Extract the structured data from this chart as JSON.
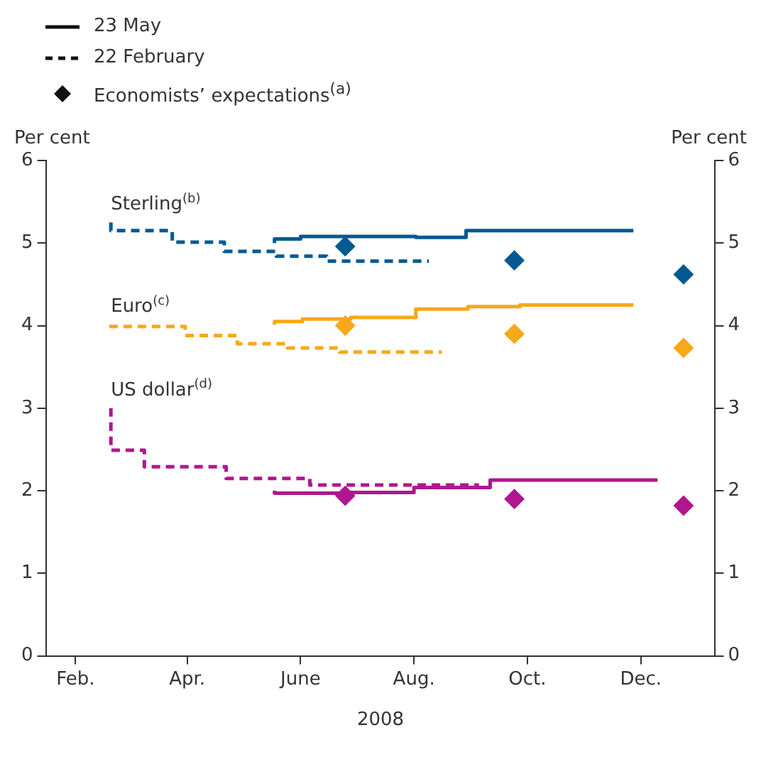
{
  "chart_data": {
    "type": "step",
    "xlabel": "2008",
    "ylabel": "Per cent",
    "y2label": "Per cent",
    "xlim": [
      "2008-01-16",
      "2009-01-10"
    ],
    "xticks": [
      {
        "value": "2008-02-01",
        "label": "Feb."
      },
      {
        "value": "2008-04-01",
        "label": "Apr."
      },
      {
        "value": "2008-06-01",
        "label": "June"
      },
      {
        "value": "2008-08-01",
        "label": "Aug."
      },
      {
        "value": "2008-10-01",
        "label": "Oct."
      },
      {
        "value": "2008-12-01",
        "label": "Dec."
      }
    ],
    "ylim": [
      0,
      6
    ],
    "yticks": [
      0,
      1,
      2,
      3,
      4,
      5,
      6
    ],
    "y2lim": [
      0,
      6
    ],
    "y2ticks": [
      0,
      1,
      2,
      3,
      4,
      5,
      6
    ],
    "grid": false,
    "series": [
      {
        "color": "#005a91",
        "line_style": "solid",
        "x": [
          "2008-05-18",
          "2008-06-01",
          "2008-08-02",
          "2008-08-29",
          "2008-10-03",
          "2008-11-27"
        ],
        "values": [
          5.0,
          5.05,
          5.08,
          5.07,
          5.15,
          5.15
        ]
      },
      {
        "color": "#005a91",
        "line_style": "dashed",
        "x": [
          "2008-02-20",
          "2008-03-24",
          "2008-04-21",
          "2008-05-19",
          "2008-06-15",
          "2008-07-12",
          "2008-08-09"
        ],
        "values": [
          5.25,
          5.15,
          5.01,
          4.9,
          4.84,
          4.78,
          4.78
        ]
      },
      {
        "color": "#f7a81b",
        "line_style": "solid",
        "x": [
          "2008-05-18",
          "2008-06-02",
          "2008-06-28",
          "2008-08-02",
          "2008-08-30",
          "2008-09-27",
          "2008-11-01",
          "2008-11-27"
        ],
        "values": [
          4.01,
          4.05,
          4.08,
          4.1,
          4.2,
          4.23,
          4.25,
          4.25
        ]
      },
      {
        "color": "#f7a81b",
        "line_style": "dashed",
        "x": [
          "2008-02-20",
          "2008-03-31",
          "2008-04-28",
          "2008-05-25",
          "2008-06-22",
          "2008-07-19",
          "2008-08-16"
        ],
        "values": [
          4.01,
          3.99,
          3.88,
          3.78,
          3.73,
          3.68,
          3.68
        ]
      },
      {
        "color": "#b0168f",
        "line_style": "solid",
        "x": [
          "2008-05-18",
          "2008-06-25",
          "2008-08-01",
          "2008-09-11",
          "2008-10-23",
          "2008-12-10"
        ],
        "values": [
          2.0,
          1.97,
          1.98,
          2.04,
          2.13,
          2.13
        ]
      },
      {
        "color": "#b0168f",
        "line_style": "dashed",
        "x": [
          "2008-02-20",
          "2008-03-09",
          "2008-04-22",
          "2008-06-06",
          "2008-07-21",
          "2008-09-05"
        ],
        "values": [
          3.0,
          2.49,
          2.29,
          2.15,
          2.07,
          2.07
        ]
      },
      {
        "type": "scatter",
        "color": "#005a91",
        "marker": "diamond",
        "x": [
          "2008-06-25",
          "2008-09-24",
          "2008-12-24"
        ],
        "values": [
          4.96,
          4.79,
          4.62
        ]
      },
      {
        "type": "scatter",
        "color": "#f7a81b",
        "marker": "diamond",
        "x": [
          "2008-06-25",
          "2008-09-24",
          "2008-12-24"
        ],
        "values": [
          4.0,
          3.9,
          3.73
        ]
      },
      {
        "type": "scatter",
        "color": "#b0168f",
        "marker": "diamond",
        "x": [
          "2008-06-25",
          "2008-09-24",
          "2008-12-24"
        ],
        "values": [
          1.94,
          1.9,
          1.82
        ]
      }
    ],
    "annotations": [
      "23 May",
      "22 February",
      "Economists’ expectations$^{(a)}$",
      {
        "text": "Sterling$^{(b)}$",
        "x": "2008-02-20",
        "y": 5.25
      },
      {
        "text": "Euro$^{(c)}$",
        "x": "2008-02-20",
        "y": 4.01
      },
      {
        "text": "US dollar$^{(d)}$",
        "x": "2008-02-20",
        "y": 3.0
      }
    ]
  }
}
